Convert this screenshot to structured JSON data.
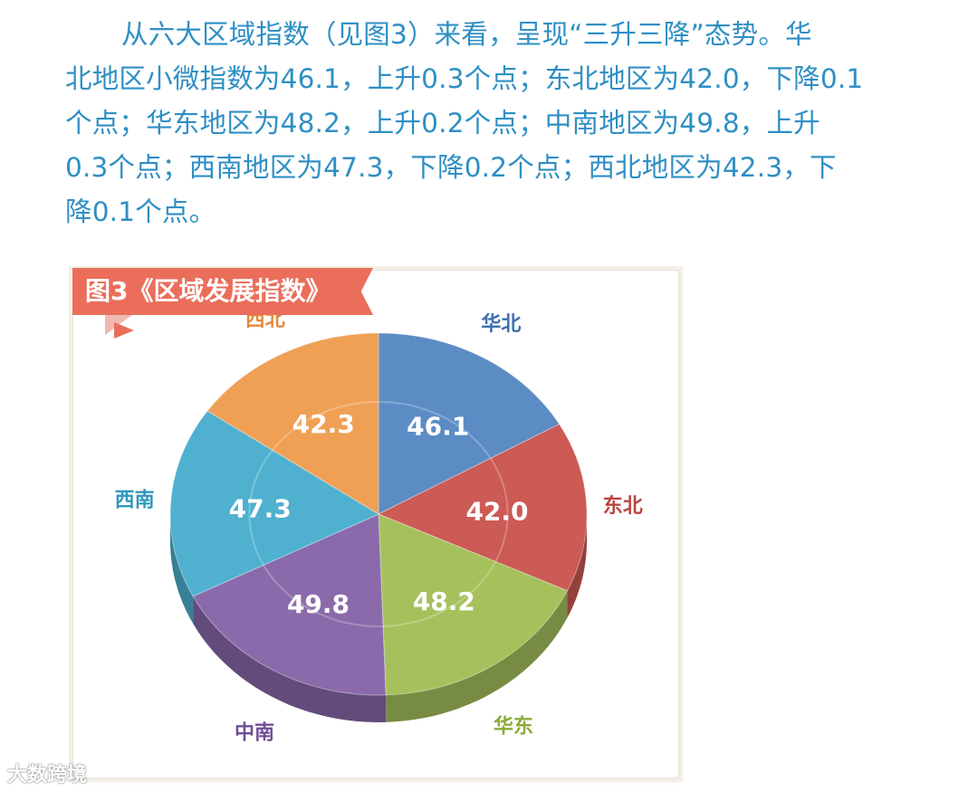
{
  "paragraph": [
    "从六大区域指数（见图3）来看，呈现“三升三降”态势。华",
    "北地区小微指数为46.1，上升0.3个点；东北地区为42.0，下降0.1",
    "个点；华东地区为48.2，上升0.2个点；中南地区为49.8，上升",
    "0.3个点；西南地区为47.3，下降0.2个点；西北地区为42.3，下",
    "降0.1个点。"
  ],
  "watermark": "大数跨境",
  "chart_data": {
    "type": "pie",
    "title": "图3《区域发展指数》",
    "slices": [
      {
        "label": "华北",
        "value": 46.1,
        "value_label": "46.1",
        "color": "#5b8cc4"
      },
      {
        "label": "东北",
        "value": 42.0,
        "value_label": "42.0",
        "color": "#cc5a55"
      },
      {
        "label": "华东",
        "value": 48.2,
        "value_label": "48.2",
        "color": "#a6c15c"
      },
      {
        "label": "中南",
        "value": 49.8,
        "value_label": "49.8",
        "color": "#8a6aab"
      },
      {
        "label": "西南",
        "value": 47.3,
        "value_label": "47.3",
        "color": "#4fb1cf"
      },
      {
        "label": "西北",
        "value": 42.3,
        "value_label": "42.3",
        "color": "#f0a055"
      }
    ],
    "label_colors": {
      "华北": "#3e6fb0",
      "东北": "#b84340",
      "华东": "#8aaa3a",
      "中南": "#6e4d96",
      "西南": "#2f97bd",
      "西北": "#e38a3a"
    }
  }
}
